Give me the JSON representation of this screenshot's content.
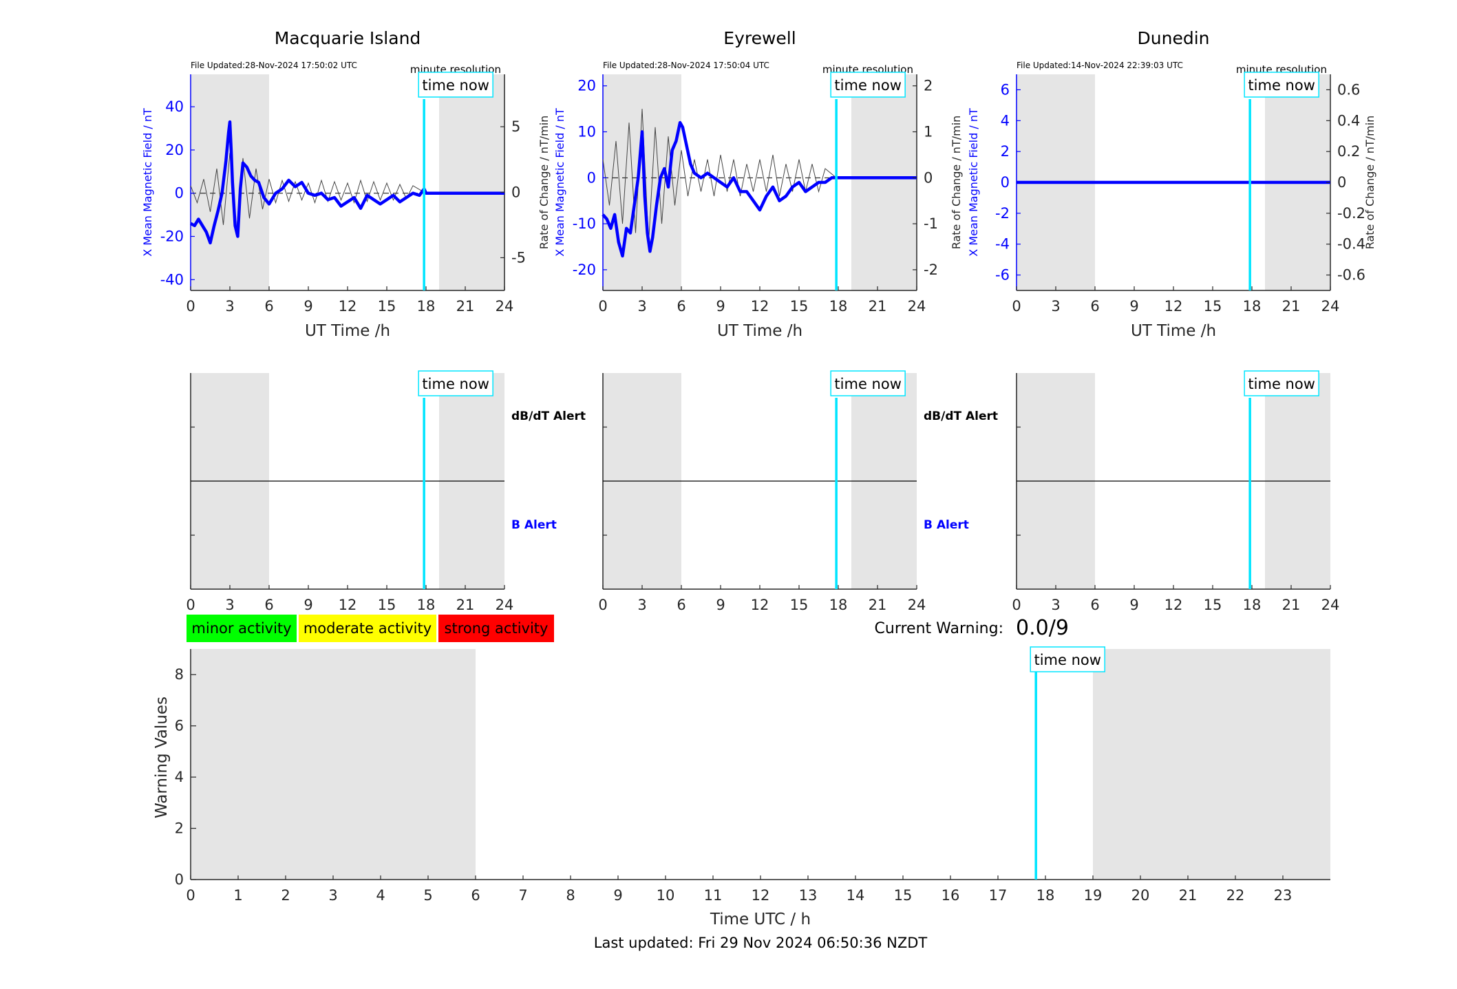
{
  "colors": {
    "night_shade": "#e5e5e5",
    "field": "#0000ff",
    "rate": "#000000",
    "now_line": "#00e5ff",
    "minor": "#00ff00",
    "moderate": "#ffff00",
    "strong": "#ff0000",
    "alert_text": "#000000",
    "b_alert_text": "#0000ff"
  },
  "footer": {
    "last_updated": "Last updated: Fri 29 Nov 2024 06:50:36 NZDT"
  },
  "legend": {
    "minor": "minor activity",
    "moderate": "moderate activity",
    "strong": "strong activity"
  },
  "current_warning": {
    "label": "Current Warning:",
    "value": "0.0/9"
  },
  "chart_data": [
    {
      "type": "line",
      "title": "Macquarie Island",
      "file_updated": "File Updated:28-Nov-2024 17:50:02 UTC",
      "resolution": "minute resolution",
      "xlabel": "UT Time /h",
      "ylabel": "X Mean Magnetic Field / nT",
      "y2label": "Rate of Change / nT/min",
      "now_label": "time now",
      "now_hour": 17.85,
      "night_shade": [
        [
          0,
          6
        ],
        [
          19,
          24
        ]
      ],
      "xlim": [
        0,
        24
      ],
      "xticks": [
        0,
        3,
        6,
        9,
        12,
        15,
        18,
        21,
        24
      ],
      "ylim": [
        -45,
        55
      ],
      "yticks": [
        -40,
        -20,
        0,
        20,
        40
      ],
      "y2lim": [
        -7.5,
        9
      ],
      "y2ticks": [
        -5,
        0,
        5
      ],
      "series": [
        {
          "name": "X Mean Magnetic Field",
          "x": [
            0,
            0.3,
            0.6,
            0.9,
            1.2,
            1.5,
            1.8,
            2.1,
            2.4,
            2.7,
            2.9,
            3.0,
            3.1,
            3.2,
            3.4,
            3.6,
            3.8,
            4.0,
            4.3,
            4.6,
            4.9,
            5.2,
            5.6,
            6.0,
            6.5,
            7.0,
            7.5,
            8.0,
            8.5,
            9.0,
            9.5,
            10.0,
            10.5,
            11.0,
            11.5,
            12.0,
            12.5,
            13.0,
            13.5,
            14.0,
            14.5,
            15.0,
            15.5,
            16.0,
            16.5,
            17.0,
            17.5,
            17.85,
            18,
            24
          ],
          "y": [
            -14,
            -15,
            -12,
            -15,
            -18,
            -23,
            -15,
            -8,
            0,
            15,
            28,
            33,
            20,
            5,
            -15,
            -20,
            2,
            14,
            12,
            8,
            6,
            5,
            -2,
            -5,
            0,
            2,
            6,
            3,
            5,
            0,
            -1,
            0,
            -3,
            -2,
            -6,
            -4,
            -2,
            -7,
            -1,
            -3,
            -5,
            -3,
            -1,
            -4,
            -2,
            0,
            -1,
            2,
            0,
            0
          ]
        },
        {
          "name": "Rate of Change",
          "x": [
            0,
            0.5,
            1,
            1.5,
            2,
            2.5,
            3,
            3.5,
            4,
            4.5,
            5,
            5.5,
            6,
            6.5,
            7,
            7.5,
            8,
            8.5,
            9,
            9.5,
            10,
            10.5,
            11,
            11.5,
            12,
            12.5,
            13,
            13.5,
            14,
            14.5,
            15,
            15.5,
            16,
            16.5,
            17,
            17.85
          ],
          "y": [
            0.5,
            -0.8,
            1.0,
            -1.5,
            1.8,
            -2.5,
            3.0,
            -3.0,
            2.6,
            -2.0,
            1.8,
            -1.3,
            1.0,
            -0.8,
            0.9,
            -0.7,
            0.8,
            -0.6,
            0.7,
            -0.8,
            0.9,
            -0.7,
            0.8,
            -0.6,
            0.7,
            -0.8,
            0.9,
            -0.7,
            0.8,
            -0.6,
            0.7,
            -0.6,
            0.6,
            -0.5,
            0.5,
            0
          ]
        }
      ]
    },
    {
      "type": "line",
      "title": "Eyrewell",
      "file_updated": "File Updated:28-Nov-2024 17:50:04 UTC",
      "resolution": "minute resolution",
      "xlabel": "UT Time /h",
      "ylabel": "X Mean Magnetic Field / nT",
      "y2label": "Rate of Change / nT/min",
      "now_label": "time now",
      "now_hour": 17.85,
      "night_shade": [
        [
          0,
          6
        ],
        [
          19,
          24
        ]
      ],
      "xlim": [
        0,
        24
      ],
      "xticks": [
        0,
        3,
        6,
        9,
        12,
        15,
        18,
        21,
        24
      ],
      "ylim": [
        -24.5,
        22.5
      ],
      "yticks": [
        -20,
        -10,
        0,
        10,
        20
      ],
      "y2lim": [
        -2.45,
        2.25
      ],
      "y2ticks": [
        -2,
        -1,
        0,
        1,
        2
      ],
      "series": [
        {
          "name": "X Mean Magnetic Field",
          "x": [
            0,
            0.3,
            0.6,
            0.9,
            1.2,
            1.5,
            1.8,
            2.1,
            2.4,
            2.7,
            3.0,
            3.2,
            3.4,
            3.6,
            3.8,
            4.1,
            4.4,
            4.7,
            5.0,
            5.3,
            5.6,
            5.9,
            6.1,
            6.4,
            6.7,
            7.0,
            7.5,
            8.0,
            8.5,
            9.0,
            9.5,
            10.0,
            10.5,
            11.0,
            11.5,
            12.0,
            12.5,
            13.0,
            13.5,
            14.0,
            14.5,
            15.0,
            15.5,
            16.0,
            16.5,
            17.0,
            17.5,
            17.85,
            18,
            24
          ],
          "y": [
            -8,
            -9,
            -11,
            -8,
            -14,
            -17,
            -11,
            -12,
            -6,
            0,
            10,
            -4,
            -12,
            -16,
            -13,
            -6,
            0,
            2,
            -2,
            6,
            8,
            12,
            11,
            7,
            3,
            1,
            0,
            1,
            0,
            -1,
            -2,
            0,
            -3,
            -3,
            -5,
            -7,
            -4,
            -2,
            -5,
            -4,
            -2,
            -1,
            -3,
            -2,
            -1,
            -1,
            0,
            0,
            0,
            0
          ]
        },
        {
          "name": "Rate of Change",
          "x": [
            0,
            0.5,
            1,
            1.5,
            2,
            2.5,
            3,
            3.5,
            4,
            4.5,
            5,
            5.5,
            6,
            6.5,
            7,
            7.5,
            8,
            8.5,
            9,
            9.5,
            10,
            10.5,
            11,
            11.5,
            12,
            12.5,
            13,
            13.5,
            14,
            14.5,
            15,
            15.5,
            16,
            16.5,
            17,
            17.85
          ],
          "y": [
            0.4,
            -0.6,
            0.8,
            -1.0,
            1.2,
            -1.2,
            1.5,
            -1.4,
            1.1,
            -1.0,
            0.9,
            -0.6,
            0.6,
            -0.4,
            0.4,
            -0.3,
            0.4,
            -0.4,
            0.5,
            -0.3,
            0.4,
            -0.4,
            0.3,
            -0.3,
            0.4,
            -0.3,
            0.5,
            -0.4,
            0.3,
            -0.3,
            0.4,
            -0.3,
            0.3,
            -0.3,
            0.2,
            0
          ]
        }
      ]
    },
    {
      "type": "line",
      "title": "Dunedin",
      "file_updated": "File Updated:14-Nov-2024 22:39:03 UTC",
      "resolution": "minute resolution",
      "xlabel": "UT Time /h",
      "ylabel": "X Mean Magnetic Field / nT",
      "y2label": "Rate of Change / nT/min",
      "now_label": "time now",
      "now_hour": 17.85,
      "night_shade": [
        [
          0,
          6
        ],
        [
          19,
          24
        ]
      ],
      "xlim": [
        0,
        24
      ],
      "xticks": [
        0,
        3,
        6,
        9,
        12,
        15,
        18,
        21,
        24
      ],
      "ylim": [
        -7,
        7
      ],
      "yticks": [
        -6,
        -4,
        -2,
        0,
        2,
        4,
        6
      ],
      "y2lim": [
        -0.7,
        0.7
      ],
      "y2ticks": [
        -0.6,
        -0.4,
        -0.2,
        0,
        0.2,
        0.4,
        0.6
      ],
      "series": [
        {
          "name": "X Mean Magnetic Field",
          "x": [
            0,
            24
          ],
          "y": [
            0,
            0
          ]
        },
        {
          "name": "Rate of Change",
          "x": [
            0,
            24
          ],
          "y": [
            0,
            0
          ]
        }
      ]
    },
    {
      "type": "line",
      "title": "",
      "alert_labels": [
        "dB/dT Alert",
        "B Alert"
      ],
      "now_label": "time now",
      "now_hour": 17.85,
      "night_shade": [
        [
          0,
          6
        ],
        [
          19,
          24
        ]
      ],
      "xlim": [
        0,
        24
      ],
      "xticks": [
        0,
        3,
        6,
        9,
        12,
        15,
        18,
        21,
        24
      ],
      "ylim": [
        -1,
        1
      ],
      "series": []
    },
    {
      "type": "line",
      "title": "",
      "alert_labels": [
        "dB/dT Alert",
        "B Alert"
      ],
      "now_label": "time now",
      "now_hour": 17.85,
      "night_shade": [
        [
          0,
          6
        ],
        [
          19,
          24
        ]
      ],
      "xlim": [
        0,
        24
      ],
      "xticks": [
        0,
        3,
        6,
        9,
        12,
        15,
        18,
        21,
        24
      ],
      "ylim": [
        -1,
        1
      ],
      "series": []
    },
    {
      "type": "line",
      "title": "",
      "alert_labels": [],
      "now_label": "time now",
      "now_hour": 17.85,
      "night_shade": [
        [
          0,
          6
        ],
        [
          19,
          24
        ]
      ],
      "xlim": [
        0,
        24
      ],
      "xticks": [
        0,
        3,
        6,
        9,
        12,
        15,
        18,
        21,
        24
      ],
      "ylim": [
        -1,
        1
      ],
      "series": []
    },
    {
      "type": "bar",
      "title": "",
      "xlabel": "Time UTC / h",
      "ylabel": "Warning Values",
      "now_label": "time now",
      "now_hour": 17.8,
      "night_shade": [
        [
          0,
          6
        ],
        [
          19,
          24
        ]
      ],
      "xlim": [
        0,
        24
      ],
      "xticks": [
        0,
        1,
        2,
        3,
        4,
        5,
        6,
        7,
        8,
        9,
        10,
        11,
        12,
        13,
        14,
        15,
        16,
        17,
        18,
        19,
        20,
        21,
        22,
        23
      ],
      "ylim": [
        0,
        9
      ],
      "yticks": [
        0,
        2,
        4,
        6,
        8
      ],
      "series": []
    }
  ]
}
